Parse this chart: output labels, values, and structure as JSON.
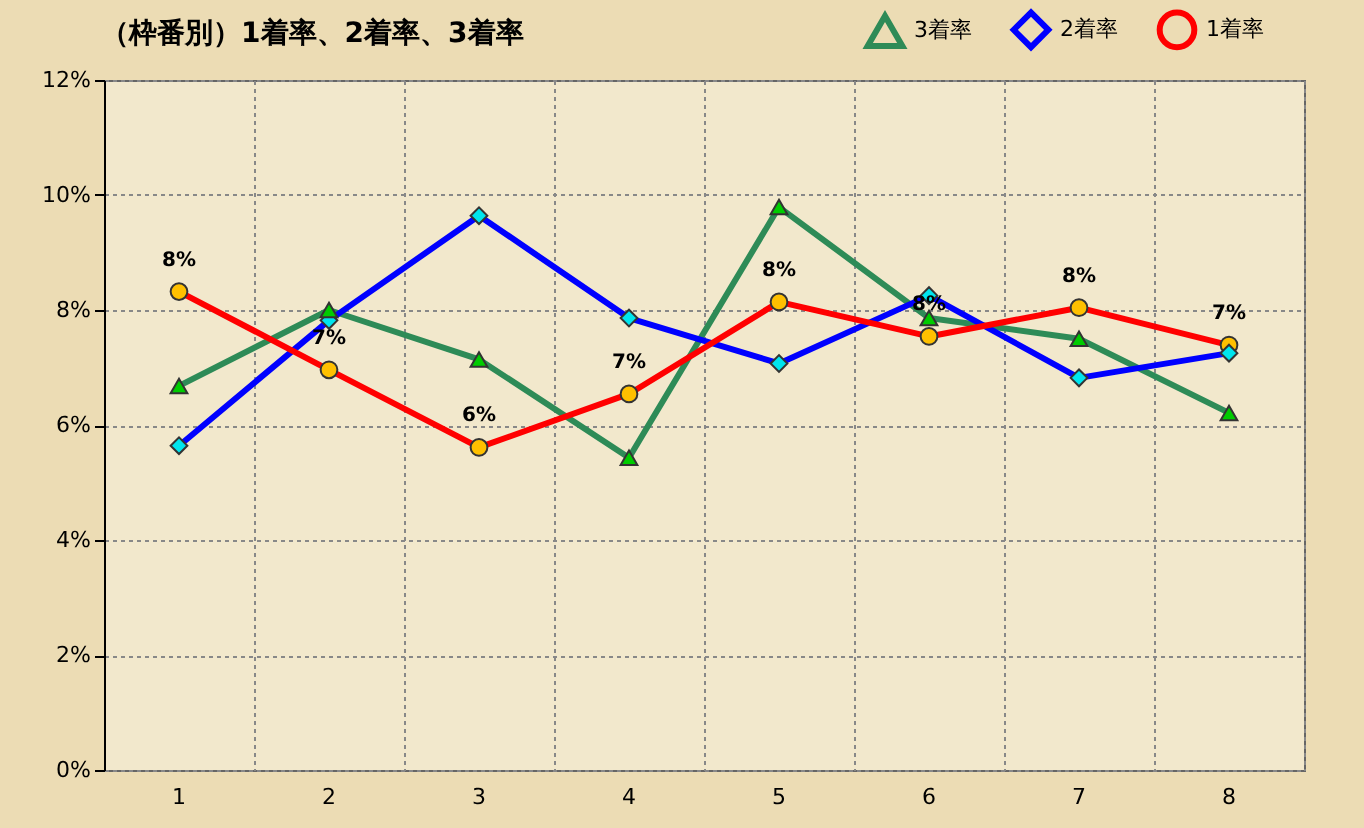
{
  "chart_data": {
    "type": "line",
    "title": "（枠番別）1着率、2着率、3着率",
    "categories": [
      "1",
      "2",
      "3",
      "4",
      "5",
      "6",
      "7",
      "8"
    ],
    "series": [
      {
        "name": "3着率",
        "color": "#2e8b57",
        "marker": "triangle",
        "values": [
          6.68,
          8.0,
          7.14,
          5.43,
          9.79,
          7.86,
          7.5,
          6.21
        ]
      },
      {
        "name": "2着率",
        "color": "#0000ff",
        "marker": "diamond",
        "values": [
          5.64,
          7.82,
          9.64,
          7.86,
          7.07,
          8.25,
          6.82,
          7.25
        ]
      },
      {
        "name": "1着率",
        "color": "#ff0000",
        "marker": "circle",
        "values": [
          8.32,
          6.96,
          5.61,
          6.54,
          8.14,
          7.54,
          8.04,
          7.39
        ],
        "value_labels": [
          "8%",
          "7%",
          "6%",
          "7%",
          "8%",
          "8%",
          "8%",
          "7%"
        ]
      }
    ],
    "ylim": [
      0,
      12
    ],
    "yticks": [
      {
        "value": 0,
        "label": "0%"
      },
      {
        "value": 2,
        "label": "2%"
      },
      {
        "value": 4,
        "label": "4%"
      },
      {
        "value": 6,
        "label": "6%"
      },
      {
        "value": 8,
        "label": "8%"
      },
      {
        "value": 10,
        "label": "10%"
      },
      {
        "value": 12,
        "label": "12%"
      }
    ],
    "grid": true,
    "legend": "top right"
  }
}
